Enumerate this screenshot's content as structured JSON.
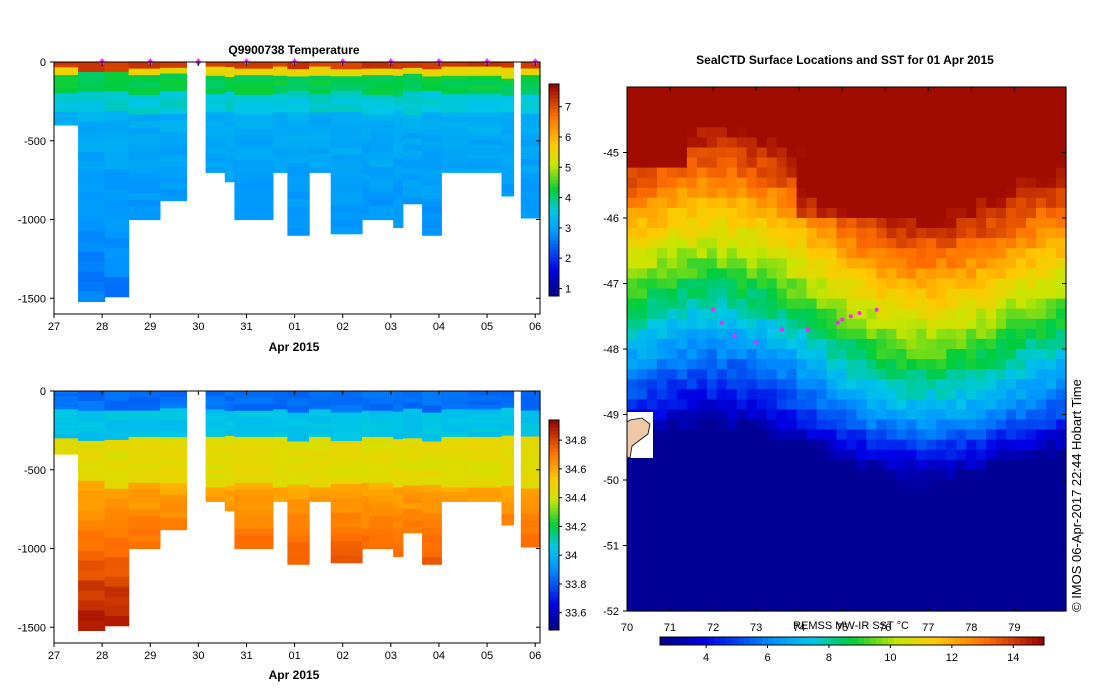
{
  "chart_data": [
    {
      "type": "heatmap",
      "title": "Q9900738  Temperature",
      "xlabel": "Apr 2015",
      "ylabel": "",
      "x_tick_labels": [
        "27",
        "28",
        "29",
        "30",
        "31",
        "01",
        "02",
        "03",
        "04",
        "05",
        "06"
      ],
      "x_range_days": [
        0,
        10.1
      ],
      "ylim": [
        -1600,
        0
      ],
      "y_tick_labels": [
        "0",
        "-500",
        "-1000",
        "-1500"
      ],
      "y_tick_values": [
        0,
        -500,
        -1000,
        -1500
      ],
      "colorbar_range": [
        0.75,
        7.75
      ],
      "colorbar_ticks": [
        "1",
        "2",
        "3",
        "4",
        "5",
        "6",
        "7"
      ],
      "colorbar_tick_values": [
        1,
        2,
        3,
        4,
        5,
        6,
        7
      ],
      "profiles_start_day": [
        0.0,
        0.5,
        1.05,
        1.55,
        2.2,
        3.15,
        3.55,
        3.75,
        4.55,
        4.85,
        5.3,
        5.75,
        6.4,
        6.55,
        7.05,
        7.25,
        7.65,
        8.05,
        8.6,
        9.3,
        9.7
      ],
      "profiles_end_day": [
        0.5,
        1.05,
        1.55,
        2.2,
        2.75,
        3.55,
        3.75,
        4.55,
        4.85,
        5.3,
        5.75,
        6.4,
        6.55,
        7.05,
        7.25,
        7.65,
        8.05,
        8.6,
        9.3,
        9.55,
        10.1
      ],
      "profile_max_depth_m": [
        -400,
        -1520,
        -1490,
        -1000,
        -880,
        -700,
        -760,
        -1000,
        -700,
        -1100,
        -700,
        -1090,
        -1000,
        -1000,
        -1050,
        -900,
        -1100,
        -700,
        -700,
        -850,
        -990
      ],
      "surface_markers_day": [
        1.0,
        2.0,
        3.0,
        4.0,
        5.0,
        6.0,
        7.0,
        8.0,
        9.0,
        10.0
      ]
    },
    {
      "type": "heatmap",
      "title": "",
      "xlabel": "Apr 2015",
      "ylabel": "",
      "x_tick_labels": [
        "27",
        "28",
        "29",
        "30",
        "31",
        "01",
        "02",
        "03",
        "04",
        "05",
        "06"
      ],
      "x_range_days": [
        0,
        10.1
      ],
      "ylim": [
        -1600,
        0
      ],
      "y_tick_labels": [
        "0",
        "-500",
        "-1000",
        "-1500"
      ],
      "y_tick_values": [
        0,
        -500,
        -1000,
        -1500
      ],
      "colorbar_range": [
        33.48,
        34.94
      ],
      "colorbar_ticks": [
        "33.6",
        "33.8",
        "34",
        "34.2",
        "34.4",
        "34.6",
        "34.8"
      ],
      "colorbar_tick_values": [
        33.6,
        33.8,
        34.0,
        34.2,
        34.4,
        34.6,
        34.8
      ]
    },
    {
      "type": "heatmap",
      "title": "SealCTD Surface Locations and SST for 01 Apr 2015",
      "xlabel": "REMSS MW-IR SST °C",
      "ylabel": "",
      "x_tick_labels": [
        "70",
        "71",
        "72",
        "73",
        "74",
        "75",
        "76",
        "77",
        "78",
        "79"
      ],
      "x_range": [
        70,
        80.2
      ],
      "y_tick_labels": [
        "-45",
        "-46",
        "-47",
        "-48",
        "-49",
        "-50",
        "-51",
        "-52"
      ],
      "y_range": [
        -52,
        -44
      ],
      "colorbar_range": [
        2.5,
        15.0
      ],
      "colorbar_ticks": [
        "4",
        "6",
        "8",
        "10",
        "12",
        "14"
      ],
      "colorbar_tick_values": [
        4,
        6,
        8,
        10,
        12,
        14
      ],
      "seal_positions": [
        [
          75.0,
          -47.55
        ],
        [
          75.2,
          -47.5
        ],
        [
          74.9,
          -47.6
        ],
        [
          75.4,
          -47.45
        ],
        [
          75.8,
          -47.4
        ],
        [
          72.0,
          -47.4
        ],
        [
          72.2,
          -47.6
        ],
        [
          72.5,
          -47.8
        ],
        [
          73.0,
          -47.9
        ],
        [
          73.6,
          -47.7
        ],
        [
          74.2,
          -47.7
        ]
      ],
      "copyright": "© IMOS 06-Apr-2017 22:44 Hobart Time"
    }
  ]
}
